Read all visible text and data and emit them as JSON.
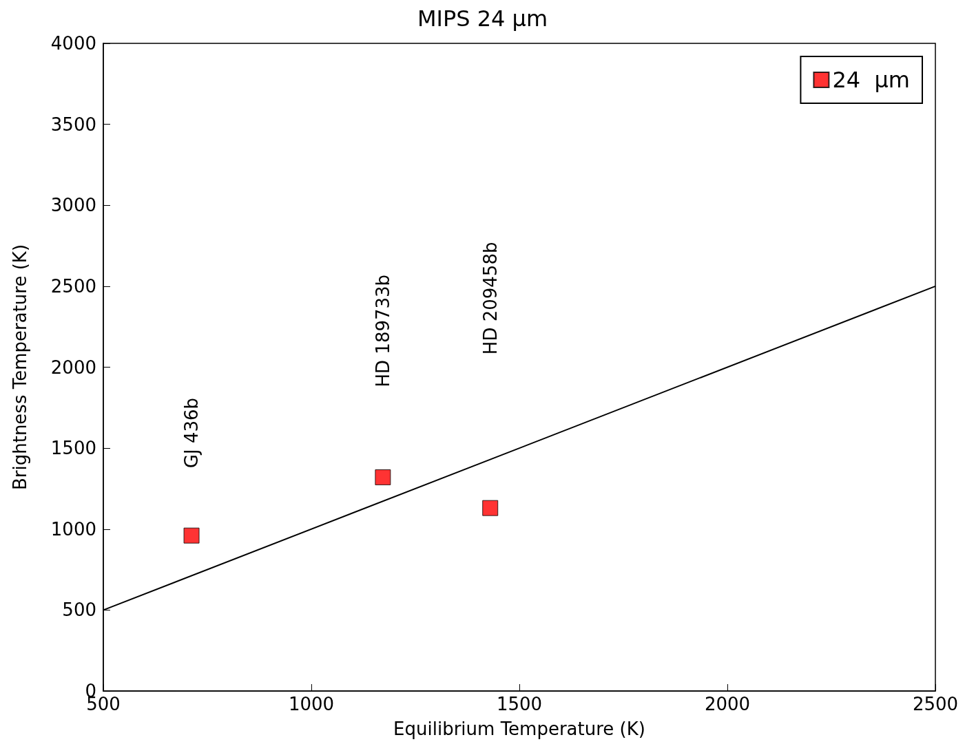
{
  "chart_data": {
    "type": "scatter",
    "title": "MIPS 24 μm",
    "xlabel": "Equilibrium Temperature (K)",
    "ylabel": "Brightness Temperature (K)",
    "xlim": [
      500,
      2500
    ],
    "ylim": [
      0,
      4000
    ],
    "xticks": [
      500,
      1000,
      1500,
      2000,
      2500
    ],
    "yticks": [
      0,
      500,
      1000,
      1500,
      2000,
      2500,
      3000,
      3500,
      4000
    ],
    "grid": false,
    "legend": "top right",
    "series": [
      {
        "name": "24  μm",
        "color": "#ff0000",
        "marker": "square",
        "x": [
          712,
          1172,
          1430
        ],
        "values": [
          960,
          1320,
          1130
        ]
      },
      {
        "type": "line",
        "color": "#000000",
        "marker": "none",
        "line_style": "solid",
        "x": [
          500,
          2500
        ],
        "values": [
          500,
          2500
        ]
      }
    ],
    "annotations": [
      "GJ 436b",
      "HD 189733b",
      "HD 209458b"
    ]
  }
}
